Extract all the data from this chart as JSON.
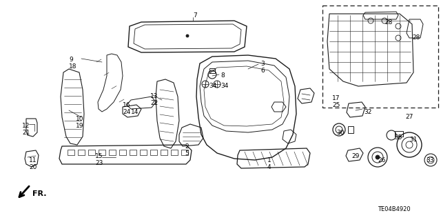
{
  "bg_color": "#ffffff",
  "line_color": "#1a1a1a",
  "text_color": "#000000",
  "figsize": [
    6.4,
    3.19
  ],
  "dpi": 100,
  "diagram_code": "TE04B4920",
  "labels": [
    [
      "7",
      280,
      18
    ],
    [
      "9",
      100,
      82
    ],
    [
      "18",
      100,
      92
    ],
    [
      "3",
      378,
      88
    ],
    [
      "6",
      378,
      98
    ],
    [
      "8",
      320,
      105
    ],
    [
      "34",
      303,
      120
    ],
    [
      "34",
      320,
      120
    ],
    [
      "13",
      218,
      135
    ],
    [
      "22",
      218,
      145
    ],
    [
      "14",
      190,
      158
    ],
    [
      "16",
      178,
      148
    ],
    [
      "24",
      178,
      158
    ],
    [
      "10",
      110,
      168
    ],
    [
      "19",
      110,
      178
    ],
    [
      "15",
      138,
      222
    ],
    [
      "23",
      138,
      232
    ],
    [
      "12",
      32,
      178
    ],
    [
      "21",
      32,
      188
    ],
    [
      "11",
      42,
      228
    ],
    [
      "20",
      42,
      238
    ],
    [
      "2",
      268,
      208
    ],
    [
      "5",
      268,
      218
    ],
    [
      "1",
      388,
      228
    ],
    [
      "4",
      388,
      238
    ],
    [
      "17",
      482,
      138
    ],
    [
      "25",
      482,
      148
    ],
    [
      "27",
      588,
      165
    ],
    [
      "28",
      558,
      28
    ],
    [
      "28",
      598,
      50
    ],
    [
      "30",
      488,
      188
    ],
    [
      "29",
      510,
      222
    ],
    [
      "26",
      548,
      228
    ],
    [
      "31",
      594,
      198
    ],
    [
      "32",
      528,
      158
    ],
    [
      "33",
      618,
      228
    ],
    [
      "35",
      572,
      195
    ]
  ]
}
